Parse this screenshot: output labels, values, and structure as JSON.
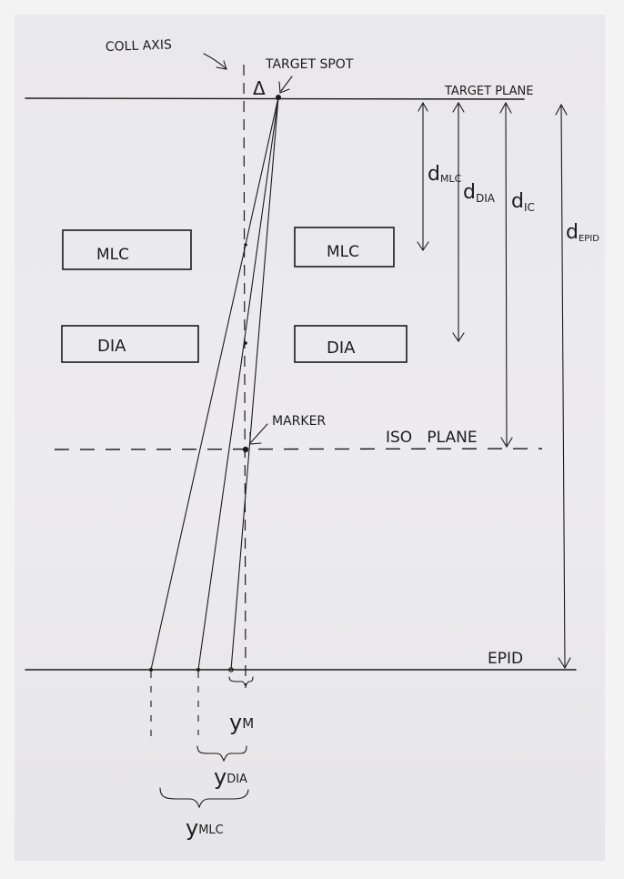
{
  "labels": {
    "coll_axis": "COLL AXIS",
    "target_spot": "TARGET SPOT",
    "target_plane": "TARGET PLANE",
    "delta": "Δ",
    "mlc": "MLC",
    "dia": "DIA",
    "marker": "MARKER",
    "iso_plane": "ISO   PLANE",
    "epid": "EPID",
    "d_mlc": "d",
    "d_mlc_sub": "MLC",
    "d_dia": "d",
    "d_dia_sub": "DIA",
    "d_ic": "d",
    "d_ic_sub": "IC",
    "d_epid": "d",
    "d_epid_sub": "EPID",
    "y_m": "y",
    "y_m_sub": "M",
    "y_dia": "y",
    "y_dia_sub": "DIA",
    "y_mlc": "y",
    "y_mlc_sub": "MLC"
  },
  "colors": {
    "ink": "#1a1a1a",
    "paper": "#eae9ed",
    "background": "#f3f3f4"
  }
}
